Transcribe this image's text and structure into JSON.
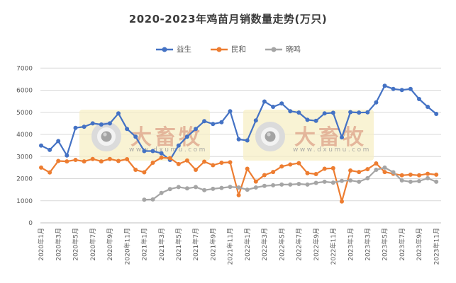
{
  "header": {
    "title": "2020-2023年鸡苗月销数量走势(万只)"
  },
  "legend": [
    {
      "label": "益生",
      "color": "#4472C4"
    },
    {
      "label": "民和",
      "color": "#ED7D31"
    },
    {
      "label": "晓鸣",
      "color": "#A5A5A5"
    }
  ],
  "watermark": {
    "brand": "大畜牧",
    "url": "www.dxumu.com"
  },
  "chart_data": {
    "type": "line",
    "title": "2020-2023年鸡苗月销数量走势(万只)",
    "ylim": [
      0,
      7000
    ],
    "y_ticks": [
      0,
      1000,
      2000,
      3000,
      4000,
      5000,
      6000,
      7000
    ],
    "x_label_every": 2,
    "grid": "horizontal",
    "legend_position": "top",
    "categories": [
      "2020年1月",
      "2020年2月",
      "2020年3月",
      "2020年4月",
      "2020年5月",
      "2020年6月",
      "2020年7月",
      "2020年8月",
      "2020年9月",
      "2020年10月",
      "2020年11月",
      "2020年12月",
      "2021年1月",
      "2021年2月",
      "2021年3月",
      "2021年4月",
      "2021年5月",
      "2021年6月",
      "2021年7月",
      "2021年8月",
      "2021年9月",
      "2021年10月",
      "2021年11月",
      "2021年12月",
      "2022年1月",
      "2022年2月",
      "2022年3月",
      "2022年4月",
      "2022年5月",
      "2022年6月",
      "2022年7月",
      "2022年8月",
      "2022年9月",
      "2022年10月",
      "2022年11月",
      "2022年12月",
      "2023年1月",
      "2023年2月",
      "2023年3月",
      "2023年4月",
      "2023年5月",
      "2023年6月",
      "2023年7月",
      "2023年8月",
      "2023年9月",
      "2023年10月",
      "2023年11月"
    ],
    "series": [
      {
        "name": "益生",
        "color": "#4472C4",
        "values": [
          3500,
          3300,
          3700,
          3050,
          4300,
          4350,
          4500,
          4450,
          4500,
          4950,
          4250,
          3900,
          3250,
          3250,
          3150,
          2850,
          3500,
          3900,
          4250,
          4600,
          4475,
          4550,
          5050,
          3780,
          3730,
          4630,
          5490,
          5250,
          5400,
          5050,
          4990,
          4660,
          4620,
          4950,
          4980,
          3870,
          5010,
          4990,
          5000,
          5450,
          6200,
          6060,
          6010,
          6060,
          5600,
          5250,
          4930
        ]
      },
      {
        "name": "民和",
        "color": "#ED7D31",
        "values": [
          2500,
          2280,
          2800,
          2780,
          2850,
          2780,
          2890,
          2780,
          2890,
          2800,
          2880,
          2400,
          2290,
          2720,
          2950,
          2930,
          2660,
          2820,
          2400,
          2770,
          2610,
          2720,
          2740,
          1250,
          2450,
          1870,
          2160,
          2300,
          2550,
          2640,
          2700,
          2250,
          2210,
          2450,
          2470,
          970,
          2370,
          2300,
          2430,
          2690,
          2300,
          2220,
          2150,
          2180,
          2150,
          2220,
          2180
        ]
      },
      {
        "name": "晓鸣",
        "color": "#A5A5A5",
        "values": [
          null,
          null,
          null,
          null,
          null,
          null,
          null,
          null,
          null,
          null,
          null,
          null,
          1050,
          1060,
          1350,
          1530,
          1620,
          1560,
          1620,
          1480,
          1540,
          1580,
          1630,
          1600,
          1500,
          1600,
          1670,
          1700,
          1730,
          1730,
          1760,
          1730,
          1810,
          1860,
          1820,
          1900,
          1920,
          1860,
          2020,
          2400,
          2500,
          2290,
          1920,
          1860,
          1890,
          2020,
          1860
        ]
      }
    ]
  }
}
